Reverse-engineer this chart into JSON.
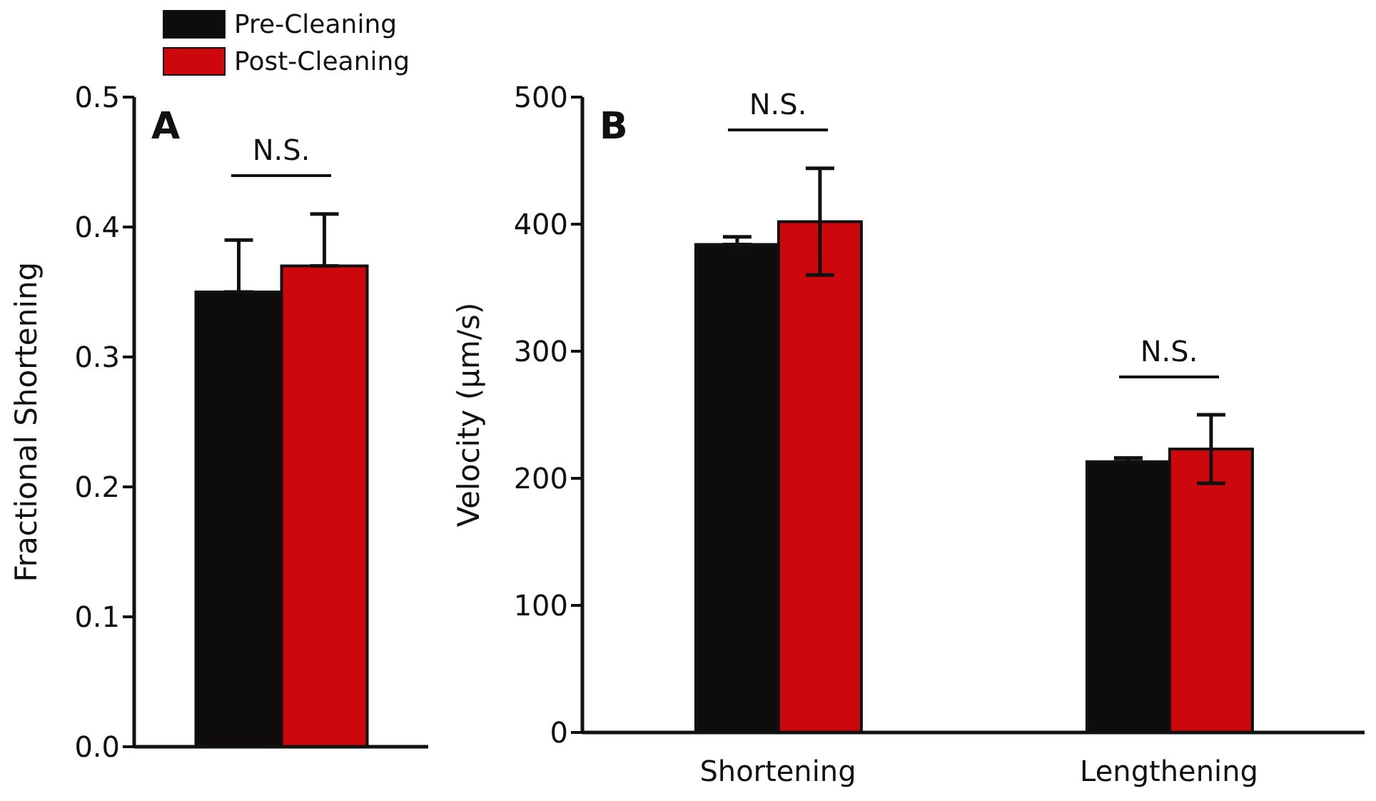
{
  "chart_data": [
    {
      "type": "bar",
      "ylabel": "Fractional Shortening",
      "categories": [
        null
      ],
      "ylim": [
        0,
        0.5
      ],
      "yticks": [
        {
          "value": 0,
          "label": "0.0"
        },
        0.1,
        0.2,
        0.3,
        0.4,
        0.5
      ],
      "legend": "top",
      "annotations": [
        "A",
        "N.S."
      ],
      "series": [
        {
          "name": "Pre-Cleaning",
          "color": "#0e0d0c",
          "values": [
            0.35
          ],
          "errors": [
            [
              0.35,
              0.39
            ]
          ]
        },
        {
          "name": "Post-Cleaning",
          "color": "#cc080d",
          "values": [
            0.37
          ],
          "errors": [
            [
              0.37,
              0.41
            ]
          ]
        }
      ]
    },
    {
      "type": "bar",
      "ylabel": "Velocity (μm/s)",
      "categories": [
        "Shortening",
        "Lengthening"
      ],
      "ylim": [
        0,
        500
      ],
      "yticks": [
        0,
        100,
        200,
        300,
        400,
        500
      ],
      "annotations": [
        "B",
        "N.S.",
        "N.S."
      ],
      "series": [
        {
          "color": "#0e0d0c",
          "values": [
            384,
            213
          ],
          "errors": [
            [
              384,
              390
            ],
            [
              213,
              216
            ]
          ]
        },
        {
          "color": "#cc080d",
          "values": [
            402,
            223
          ],
          "errors": [
            42,
            27
          ]
        }
      ]
    }
  ]
}
